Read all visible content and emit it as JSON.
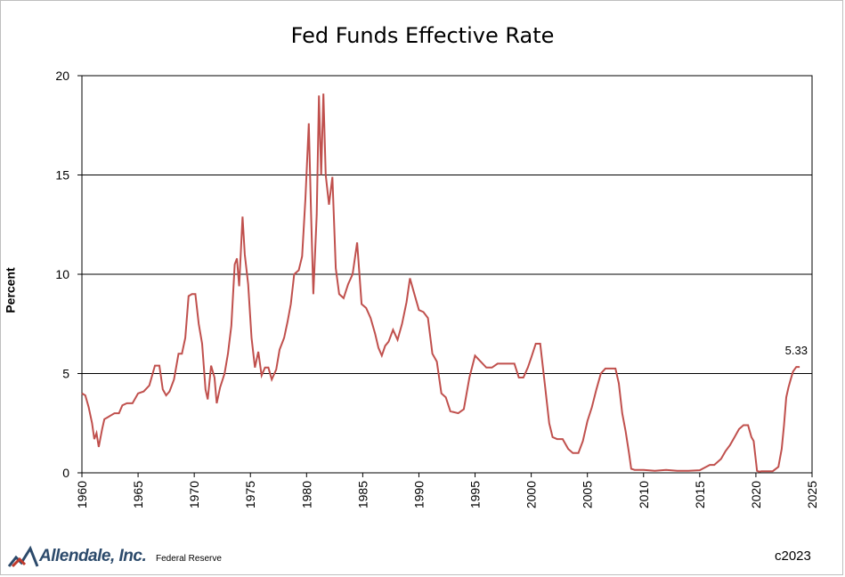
{
  "chart_data": {
    "type": "line",
    "title": "Fed Funds Effective Rate",
    "ylabel": "Percent",
    "xlim": [
      1960,
      2025
    ],
    "ylim": [
      0,
      20
    ],
    "yticks": [
      "0",
      "5",
      "10",
      "15",
      "20"
    ],
    "xticks": [
      "1960",
      "1965",
      "1970",
      "1975",
      "1980",
      "1985",
      "1990",
      "1995",
      "2000",
      "2005",
      "2010",
      "2015",
      "2020",
      "2025"
    ],
    "grid": "horizontal",
    "line_color": "#c0504d",
    "annotation": {
      "text": "5.33",
      "x": 2023.6,
      "y": 5.33
    },
    "series": [
      {
        "x": [
          1960.0,
          1960.3,
          1960.6,
          1960.9,
          1961.1,
          1961.3,
          1961.5,
          1961.8,
          1962.0,
          1962.3,
          1962.6,
          1962.9,
          1963.3,
          1963.6,
          1964.0,
          1964.5,
          1965.0,
          1965.5,
          1966.0,
          1966.5,
          1966.9,
          1967.2,
          1967.5,
          1967.8,
          1968.2,
          1968.6,
          1968.9,
          1969.2,
          1969.5,
          1969.8,
          1970.1,
          1970.4,
          1970.7,
          1971.0,
          1971.2,
          1971.5,
          1971.8,
          1972.0,
          1972.3,
          1972.7,
          1973.0,
          1973.3,
          1973.6,
          1973.8,
          1974.0,
          1974.3,
          1974.5,
          1974.8,
          1975.1,
          1975.4,
          1975.7,
          1976.0,
          1976.3,
          1976.6,
          1976.9,
          1977.3,
          1977.6,
          1978.0,
          1978.3,
          1978.6,
          1978.9,
          1979.3,
          1979.6,
          1979.9,
          1980.2,
          1980.4,
          1980.6,
          1980.9,
          1981.1,
          1981.3,
          1981.5,
          1981.7,
          1982.0,
          1982.3,
          1982.6,
          1982.9,
          1983.3,
          1983.7,
          1984.1,
          1984.5,
          1984.9,
          1985.3,
          1985.7,
          1986.1,
          1986.4,
          1986.7,
          1987.0,
          1987.3,
          1987.7,
          1988.1,
          1988.5,
          1988.9,
          1989.2,
          1989.6,
          1990.0,
          1990.4,
          1990.8,
          1991.2,
          1991.6,
          1992.0,
          1992.4,
          1992.8,
          1993.5,
          1994.0,
          1994.5,
          1995.0,
          1995.5,
          1996.0,
          1996.5,
          1997.0,
          1997.5,
          1998.0,
          1998.5,
          1998.9,
          1999.3,
          1999.7,
          2000.0,
          2000.4,
          2000.8,
          2001.2,
          2001.6,
          2001.9,
          2002.3,
          2002.8,
          2003.3,
          2003.7,
          2004.2,
          2004.6,
          2005.0,
          2005.4,
          2005.8,
          2006.2,
          2006.6,
          2007.0,
          2007.5,
          2007.8,
          2008.1,
          2008.4,
          2008.7,
          2008.9,
          2009.2,
          2010.0,
          2011.0,
          2012.0,
          2013.0,
          2014.0,
          2015.0,
          2015.9,
          2016.3,
          2016.9,
          2017.3,
          2017.7,
          2018.1,
          2018.5,
          2018.9,
          2019.3,
          2019.6,
          2019.8,
          2020.1,
          2020.3,
          2020.5,
          2021.0,
          2021.5,
          2022.0,
          2022.3,
          2022.5,
          2022.7,
          2022.9,
          2023.1,
          2023.3,
          2023.6,
          2023.9
        ],
        "values": [
          4.0,
          3.9,
          3.3,
          2.5,
          1.7,
          2.0,
          1.3,
          2.2,
          2.7,
          2.8,
          2.9,
          3.0,
          3.0,
          3.4,
          3.5,
          3.5,
          4.0,
          4.1,
          4.4,
          5.4,
          5.4,
          4.2,
          3.9,
          4.1,
          4.7,
          6.0,
          6.0,
          6.8,
          8.9,
          9.0,
          9.0,
          7.5,
          6.5,
          4.2,
          3.7,
          5.4,
          4.8,
          3.5,
          4.3,
          5.0,
          6.0,
          7.4,
          10.5,
          10.8,
          9.4,
          12.9,
          11.0,
          9.5,
          6.8,
          5.3,
          6.1,
          4.9,
          5.3,
          5.3,
          4.7,
          5.2,
          6.2,
          6.8,
          7.6,
          8.5,
          10.0,
          10.2,
          10.9,
          13.8,
          17.6,
          13.0,
          9.0,
          13.0,
          19.0,
          15.0,
          19.1,
          15.0,
          13.5,
          14.9,
          10.3,
          9.0,
          8.8,
          9.5,
          10.0,
          11.6,
          8.5,
          8.3,
          7.8,
          7.0,
          6.3,
          5.9,
          6.4,
          6.6,
          7.2,
          6.7,
          7.5,
          8.6,
          9.8,
          9.0,
          8.2,
          8.1,
          7.8,
          6.0,
          5.6,
          4.0,
          3.8,
          3.1,
          3.0,
          3.2,
          4.8,
          5.9,
          5.6,
          5.3,
          5.3,
          5.5,
          5.5,
          5.5,
          5.5,
          4.8,
          4.8,
          5.3,
          5.8,
          6.5,
          6.5,
          4.5,
          2.5,
          1.8,
          1.7,
          1.7,
          1.2,
          1.0,
          1.0,
          1.6,
          2.6,
          3.3,
          4.2,
          5.0,
          5.25,
          5.25,
          5.25,
          4.5,
          3.0,
          2.1,
          1.0,
          0.2,
          0.15,
          0.15,
          0.1,
          0.15,
          0.1,
          0.1,
          0.13,
          0.4,
          0.4,
          0.7,
          1.1,
          1.4,
          1.8,
          2.2,
          2.4,
          2.4,
          1.8,
          1.6,
          0.1,
          0.06,
          0.08,
          0.08,
          0.08,
          0.3,
          1.2,
          2.4,
          3.8,
          4.3,
          4.7,
          5.1,
          5.33,
          5.33
        ]
      }
    ]
  },
  "branding": {
    "logo_text": "Allendale, Inc.",
    "source": "Federal Reserve",
    "copyright": "c2023"
  }
}
